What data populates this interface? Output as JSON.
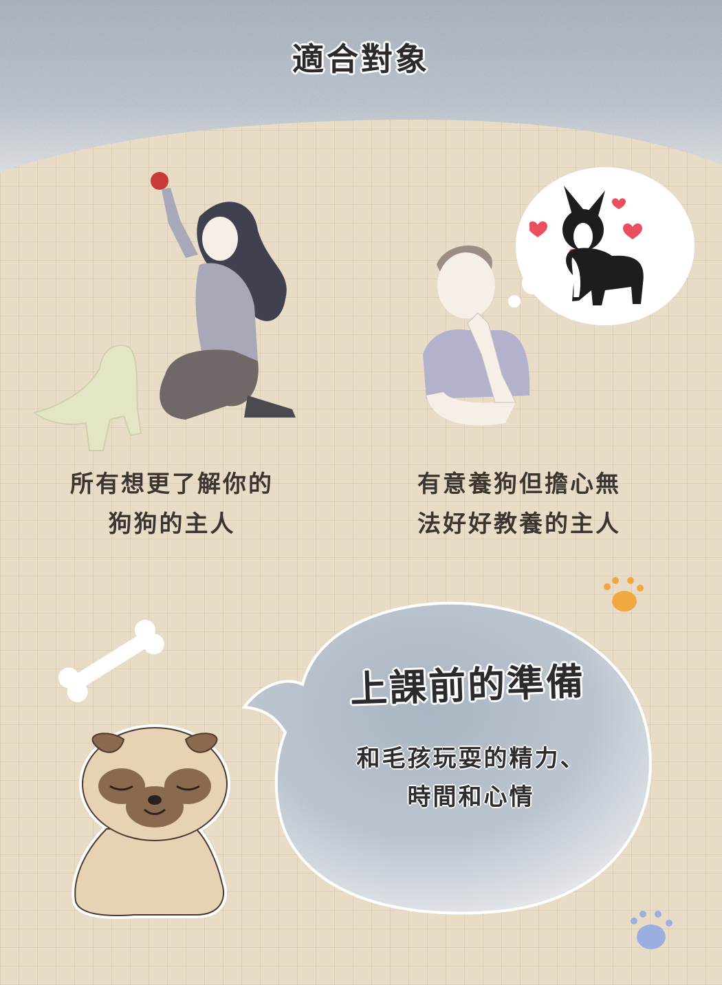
{
  "header": {
    "title": "適合對象"
  },
  "audience": {
    "left": {
      "line1": "所有想更了解你的",
      "line2": "狗狗的主人"
    },
    "right": {
      "line1": "有意養狗但擔心無",
      "line2": "法好好教養的主人"
    }
  },
  "preparation": {
    "title": "上課前的準備",
    "line1": "和毛孩玩耍的精力、",
    "line2": "時間和心情"
  },
  "colors": {
    "background": "#e9dcc6",
    "top_band": "#a9b4c2",
    "bubble": "#b3bdc9",
    "paw_orange": "#f0a840",
    "paw_blue": "#9aaee0"
  },
  "icons": {
    "woman_playing_with_puppy": "woman-with-puppy-illustration",
    "thinking_man": "thinking-man-illustration",
    "thought_dog": "boston-terrier-illustration",
    "bone": "bone-icon",
    "pug": "pug-illustration",
    "paw_orange": "paw-icon",
    "paw_blue": "paw-icon"
  }
}
